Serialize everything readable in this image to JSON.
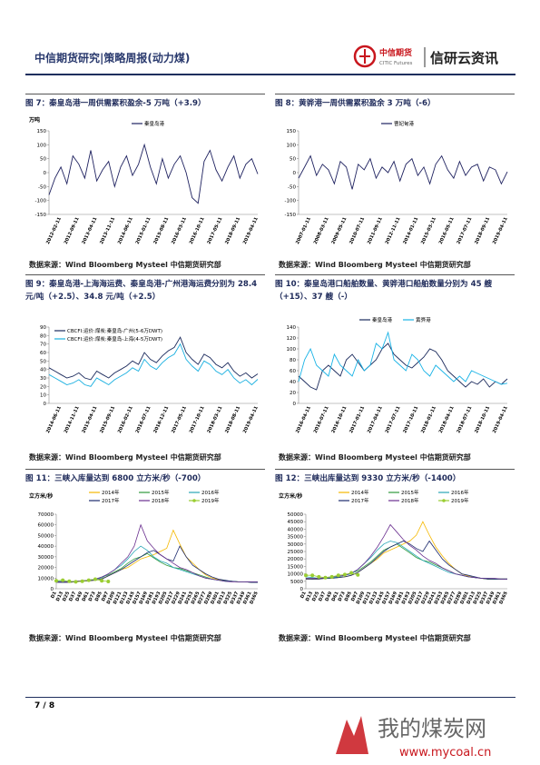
{
  "header": {
    "title": "中信期货研究|策略周报(动力煤)",
    "logo_cn": "中信期货",
    "logo_en": "CITIC Futures",
    "brand": "信研云资讯"
  },
  "footer": {
    "page": "7 / 8",
    "watermark_cn": "我的煤炭网",
    "watermark_url": "www.mycoal.cn"
  },
  "chart_data": [
    {
      "type": "line",
      "title": "图 7：秦皇岛港一周供需累积盈余-5 万吨（+3.9）",
      "source": "数据来源：Wind Bloomberg Mysteel 中信期货研究部",
      "y_label": "万吨",
      "legend": "top",
      "grid": false,
      "categories": [
        null,
        null,
        "2012-02-11",
        null,
        null,
        "2012-09-11",
        null,
        null,
        "2013-04-11",
        null,
        null,
        "2013-11-11",
        null,
        null,
        "2014-06-11",
        null,
        null,
        "2015-01-11",
        null,
        null,
        "2015-08-11",
        null,
        null,
        "2016-03-11",
        null,
        null,
        "2016-10-11",
        null,
        null,
        "2017-05-11",
        null,
        null,
        "2018-09-11",
        null,
        null,
        "2019-04-11"
      ],
      "ylim": [
        -150,
        150
      ],
      "yticks": [
        -150,
        -100,
        -50,
        0,
        50,
        100,
        150
      ],
      "series": [
        {
          "name": "秦皇岛港",
          "color": "#1f2260",
          "values": [
            -80,
            -20,
            20,
            -40,
            60,
            30,
            -20,
            80,
            -30,
            10,
            40,
            -50,
            20,
            60,
            -10,
            30,
            100,
            20,
            -40,
            50,
            -20,
            30,
            60,
            0,
            -90,
            -110,
            40,
            80,
            10,
            -30,
            20,
            60,
            -20,
            30,
            50,
            -5
          ]
        }
      ]
    },
    {
      "type": "line",
      "title": "图 8：黄骅港一周供需累积盈余 3 万吨（-6）",
      "source": "数据来源：Wind Bloomberg Mysteel 中信期货研究部",
      "legend": "top",
      "grid": false,
      "categories": [
        null,
        null,
        "2007-01-11",
        null,
        null,
        "2008-03-11",
        null,
        null,
        "2009-05-11",
        null,
        null,
        "2010-07-11",
        null,
        null,
        "2011-09-11",
        null,
        null,
        "2012-11-11",
        null,
        null,
        "2014-01-11",
        null,
        null,
        "2015-03-11",
        null,
        null,
        "2016-05-11",
        null,
        null,
        "2017-07-11",
        null,
        null,
        "2018-09-11",
        null,
        null,
        "2019-04-11"
      ],
      "ylim": [
        -150,
        150
      ],
      "yticks": [
        -150,
        -100,
        -50,
        0,
        50,
        100,
        150
      ],
      "series": [
        {
          "name": "曹妃甸港",
          "color": "#1f2260",
          "values": [
            -20,
            20,
            60,
            -10,
            30,
            10,
            -40,
            40,
            20,
            -60,
            30,
            10,
            50,
            -20,
            20,
            0,
            40,
            -30,
            30,
            50,
            -10,
            20,
            -40,
            30,
            60,
            10,
            -20,
            40,
            -10,
            20,
            30,
            -30,
            20,
            10,
            -40,
            3
          ]
        }
      ]
    },
    {
      "type": "line",
      "title": "图 9：秦皇岛港-上海海运费、秦皇岛港-广州港海运费分别为 28.4 元/吨（+2.5）、34.8 元/吨（+2.5）",
      "source": "数据来源：Wind Bloomberg Mysteel 中信期货研究部",
      "legend": "top-left",
      "grid": false,
      "categories": [
        null,
        null,
        "2014-06-11",
        null,
        null,
        "2014-11-11",
        null,
        null,
        "2015-04-11",
        null,
        null,
        "2015-09-11",
        null,
        null,
        "2016-02-11",
        null,
        null,
        "2016-07-11",
        null,
        null,
        "2016-12-11",
        null,
        null,
        "2017-05-11",
        null,
        null,
        "2017-10-11",
        null,
        null,
        "2018-03-11",
        null,
        null,
        "2018-08-11",
        null,
        null,
        "2019-04-11"
      ],
      "ylim": [
        0,
        90
      ],
      "yticks": [
        0,
        10,
        20,
        30,
        40,
        50,
        60,
        70,
        80,
        90
      ],
      "series": [
        {
          "name": "CBCFI:运价:煤炭:秦皇岛-广州(5-6万DWT)",
          "color": "#1b2a5c",
          "values": [
            42,
            38,
            34,
            30,
            32,
            36,
            30,
            28,
            38,
            34,
            30,
            36,
            40,
            44,
            50,
            46,
            60,
            52,
            48,
            56,
            62,
            66,
            78,
            60,
            52,
            46,
            58,
            54,
            46,
            42,
            48,
            38,
            32,
            36,
            30,
            34.8
          ]
        },
        {
          "name": "CBCFI:运价:煤炭:秦皇岛-上海(4-5万DWT)",
          "color": "#1ab0e0",
          "values": [
            34,
            30,
            26,
            22,
            24,
            28,
            22,
            20,
            30,
            26,
            22,
            28,
            32,
            36,
            42,
            38,
            52,
            44,
            40,
            48,
            54,
            58,
            70,
            52,
            44,
            38,
            50,
            46,
            38,
            34,
            40,
            30,
            24,
            28,
            22,
            28.4
          ]
        }
      ]
    },
    {
      "type": "line",
      "title": "图 10：秦皇岛港口船舶数量、黄骅港口船舶数量分别为 45 艘（+15）、37 艘（-）",
      "source": "数据来源：Wind Bloomberg Mysteel 中信期货研究部",
      "legend": "top",
      "grid": false,
      "categories": [
        null,
        null,
        "2016-04-11",
        null,
        null,
        "2016-07-11",
        null,
        null,
        "2016-10-11",
        null,
        null,
        "2017-01-11",
        null,
        null,
        "2017-04-11",
        null,
        null,
        "2017-07-11",
        null,
        null,
        "2017-10-11",
        null,
        null,
        "2018-01-11",
        null,
        null,
        "2018-04-11",
        null,
        null,
        "2018-07-11",
        null,
        null,
        "2018-10-11",
        null,
        null,
        "2019-04-11"
      ],
      "ylim": [
        0,
        140
      ],
      "yticks": [
        0,
        20,
        40,
        60,
        80,
        100,
        120,
        140
      ],
      "series": [
        {
          "name": "秦皇岛港",
          "color": "#1b2a5c",
          "values": [
            50,
            40,
            30,
            25,
            60,
            70,
            60,
            50,
            80,
            90,
            75,
            60,
            70,
            80,
            100,
            110,
            90,
            80,
            70,
            65,
            75,
            85,
            100,
            95,
            80,
            60,
            50,
            40,
            30,
            40,
            35,
            45,
            30,
            40,
            35,
            45
          ]
        },
        {
          "name": "黄骅港",
          "color": "#19b3e6",
          "values": [
            40,
            80,
            100,
            70,
            60,
            50,
            90,
            70,
            60,
            50,
            80,
            60,
            70,
            110,
            100,
            130,
            80,
            70,
            60,
            90,
            80,
            60,
            50,
            70,
            60,
            50,
            40,
            50,
            40,
            60,
            55,
            50,
            45,
            40,
            35,
            37
          ]
        }
      ]
    },
    {
      "type": "line",
      "title": "图 11：三峡入库量达到 6800 立方米/秒（-700）",
      "source": "数据来源：Wind Bloomberg Mysteel 中信期货研究部",
      "y_label": "立方米/秒",
      "legend": "top",
      "grid": false,
      "categories": [
        "D1",
        "D13",
        "D25",
        "D37",
        "D49",
        "D61",
        "D73",
        "D85",
        "D97",
        "D109",
        "D121",
        "D133",
        "D145",
        "D157",
        "D169",
        "D181",
        "D193",
        "D205",
        "D217",
        "D229",
        "D241",
        "D253",
        "D265",
        "D277",
        "D289",
        "D301",
        "D313",
        "D325",
        "D337",
        "D349",
        "D361",
        "D365"
      ],
      "ylim": [
        0,
        70000
      ],
      "yticks": [
        0,
        10000,
        20000,
        30000,
        40000,
        50000,
        60000,
        70000
      ],
      "series": [
        {
          "name": "2014年",
          "color": "#f5b800",
          "values": [
            6500,
            6500,
            6000,
            6500,
            7000,
            7500,
            8000,
            9500,
            12000,
            15000,
            18000,
            20000,
            24000,
            28000,
            30000,
            32000,
            35000,
            38000,
            55000,
            42000,
            30000,
            24000,
            18000,
            13000,
            10000,
            8500,
            7500,
            7000,
            6500,
            6500,
            6500,
            6500
          ]
        },
        {
          "name": "2015年",
          "color": "#2e9a3a",
          "values": [
            6500,
            6000,
            6500,
            7000,
            7500,
            8000,
            9000,
            11000,
            13000,
            16000,
            19000,
            24000,
            28000,
            30000,
            33000,
            29000,
            25000,
            22000,
            20000,
            19000,
            17000,
            15000,
            13000,
            11000,
            9000,
            8000,
            7500,
            7000,
            6500,
            6500,
            6000,
            6000
          ]
        },
        {
          "name": "2016年",
          "color": "#27a5b5",
          "values": [
            7000,
            7000,
            6500,
            6500,
            7000,
            8000,
            9000,
            10000,
            14000,
            18000,
            22000,
            28000,
            35000,
            40000,
            36000,
            30000,
            26000,
            24000,
            20000,
            18000,
            16000,
            14000,
            12000,
            10000,
            9000,
            8000,
            7000,
            7000,
            6500,
            6500,
            6500,
            6500
          ]
        },
        {
          "name": "2017年",
          "color": "#1c2a6e",
          "values": [
            6000,
            6000,
            6000,
            6500,
            7000,
            7500,
            8000,
            9000,
            12000,
            15000,
            18000,
            22000,
            26000,
            30000,
            34000,
            36000,
            32000,
            28000,
            26000,
            40000,
            30000,
            22000,
            18000,
            14000,
            11000,
            9000,
            8000,
            7000,
            6500,
            6500,
            6000,
            6000
          ]
        },
        {
          "name": "2018年",
          "color": "#6a2f8f",
          "values": [
            6500,
            6500,
            6500,
            7000,
            7500,
            8000,
            9000,
            11000,
            14000,
            18000,
            24000,
            30000,
            40000,
            60000,
            45000,
            38000,
            32000,
            28000,
            24000,
            20000,
            18000,
            15000,
            12000,
            10000,
            9000,
            8000,
            7000,
            6500,
            6500,
            6500,
            6500,
            6500
          ]
        },
        {
          "name": "2019年",
          "color": "#9acd32",
          "marker": "circle",
          "values": [
            7500,
            8000,
            7000,
            6500,
            7000,
            8000,
            9000,
            7500,
            6800,
            null,
            null,
            null,
            null,
            null,
            null,
            null,
            null,
            null,
            null,
            null,
            null,
            null,
            null,
            null,
            null,
            null,
            null,
            null,
            null,
            null,
            null,
            null
          ]
        }
      ]
    },
    {
      "type": "line",
      "title": "图 12：三峡出库量达到 9330 立方米/秒（-1400）",
      "source": "数据来源：Wind Bloomberg Mysteel 中信期货研究部",
      "y_label": "立方米/秒",
      "legend": "top",
      "grid": false,
      "categories": [
        "D1",
        "D13",
        "D25",
        "D37",
        "D49",
        "D61",
        "D73",
        "D85",
        "D97",
        "D109",
        "D121",
        "D133",
        "D145",
        "D157",
        "D169",
        "D181",
        "D193",
        "D205",
        "D217",
        "D229",
        "D241",
        "D253",
        "D265",
        "D277",
        "D289",
        "D301",
        "D313",
        "D325",
        "D337",
        "D349",
        "D361",
        "D365"
      ],
      "ylim": [
        0,
        50000
      ],
      "yticks": [
        0,
        5000,
        10000,
        15000,
        20000,
        25000,
        30000,
        35000,
        40000,
        45000,
        50000
      ],
      "series": [
        {
          "name": "2014年",
          "color": "#f5b800",
          "values": [
            6500,
            6500,
            6500,
            7000,
            7000,
            7500,
            8000,
            9000,
            11000,
            14000,
            17000,
            20000,
            24000,
            26000,
            28000,
            30000,
            32000,
            36000,
            45000,
            36000,
            28000,
            22000,
            17000,
            13000,
            10000,
            8500,
            7500,
            7000,
            6500,
            6500,
            6500,
            6500
          ]
        },
        {
          "name": "2015年",
          "color": "#2e9a3a",
          "values": [
            7000,
            6500,
            7000,
            7000,
            7500,
            8000,
            9000,
            10500,
            12000,
            15000,
            18000,
            22000,
            26000,
            28000,
            30000,
            27000,
            24000,
            21000,
            19000,
            18000,
            16000,
            14000,
            12000,
            10000,
            9000,
            8000,
            7500,
            7000,
            6500,
            6500,
            6500,
            6500
          ]
        },
        {
          "name": "2016年",
          "color": "#27a5b5",
          "values": [
            8000,
            7500,
            7000,
            7000,
            7500,
            8000,
            9000,
            10000,
            13000,
            17000,
            21000,
            26000,
            30000,
            32000,
            31000,
            28000,
            25000,
            22000,
            19000,
            17000,
            15000,
            13000,
            11000,
            10000,
            9000,
            8000,
            7500,
            7000,
            7000,
            6500,
            6500,
            6500
          ]
        },
        {
          "name": "2017年",
          "color": "#1c2a6e",
          "values": [
            6500,
            6500,
            6500,
            7000,
            7000,
            7500,
            8000,
            9000,
            11000,
            14000,
            17000,
            21000,
            25000,
            28000,
            30000,
            32000,
            30000,
            27000,
            25000,
            32000,
            26000,
            20000,
            16000,
            13000,
            10000,
            9000,
            8000,
            7000,
            6500,
            6500,
            6500,
            6500
          ]
        },
        {
          "name": "2018年",
          "color": "#6a2f8f",
          "values": [
            7000,
            7000,
            7000,
            7500,
            8000,
            8500,
            9000,
            10500,
            13000,
            17000,
            22000,
            28000,
            35000,
            43000,
            38000,
            33000,
            29000,
            26000,
            22000,
            19000,
            17000,
            14000,
            12000,
            10000,
            9000,
            8000,
            7500,
            7000,
            7000,
            7000,
            6500,
            6500
          ]
        },
        {
          "name": "2019年",
          "color": "#9acd32",
          "marker": "circle",
          "values": [
            9000,
            9000,
            8000,
            7500,
            8000,
            9000,
            9500,
            10700,
            9330,
            null,
            null,
            null,
            null,
            null,
            null,
            null,
            null,
            null,
            null,
            null,
            null,
            null,
            null,
            null,
            null,
            null,
            null,
            null,
            null,
            null,
            null,
            null
          ]
        }
      ]
    }
  ]
}
